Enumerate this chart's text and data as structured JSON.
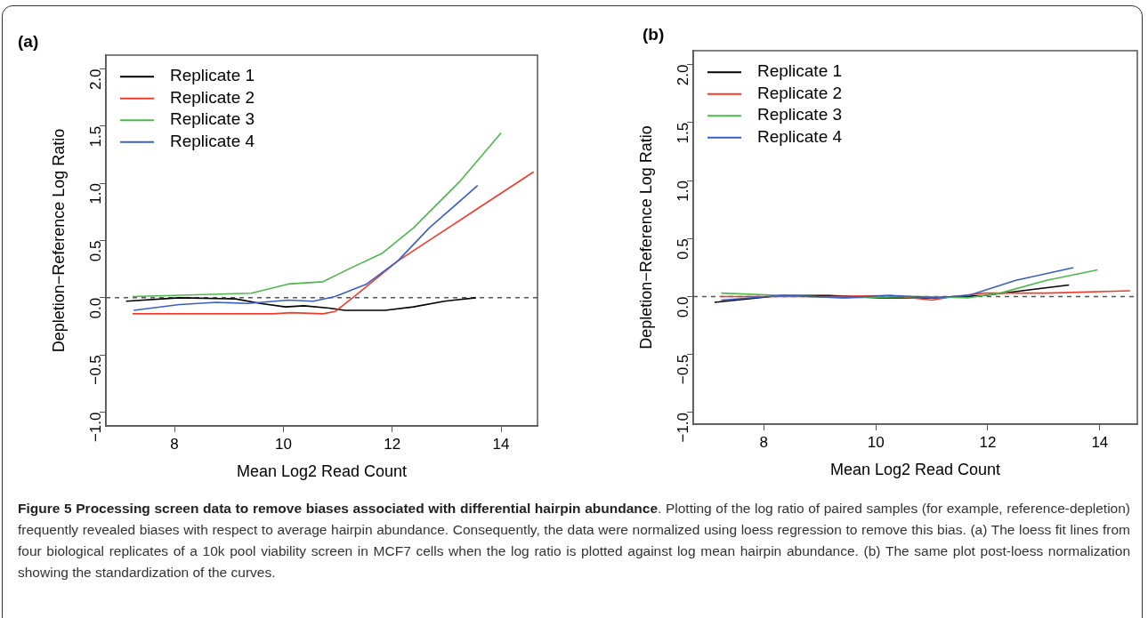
{
  "chart_data": [
    {
      "type": "line",
      "title": "(a)",
      "xlabel": "Mean Log2 Read Count",
      "ylabel": "Depletion−Reference Log Ratio",
      "xlim": [
        6.74,
        14.67
      ],
      "xticks": [
        8,
        10,
        12,
        14
      ],
      "ylim": [
        -1.12,
        2.12
      ],
      "yticks": [
        {
          "value": -1,
          "label": "−1.0"
        },
        {
          "value": -0.5,
          "label": "−0.5"
        },
        {
          "value": 0,
          "label": "0.0"
        },
        {
          "value": 0.5,
          "label": "0.5"
        },
        {
          "value": 1,
          "label": "1.0"
        },
        {
          "value": 1.5,
          "label": "1.5"
        },
        {
          "value": 2,
          "label": "2.0"
        }
      ],
      "grid": false,
      "legend": "top left",
      "marker": "none",
      "ref_lines": [
        {
          "axis": "y",
          "value": 0,
          "color": "#555555",
          "line_style": "dashed"
        }
      ],
      "series": [
        {
          "name": "Replicate 1",
          "color": "#000000",
          "x": [
            7.11,
            8.09,
            9.12,
            9.58,
            10.04,
            10.38,
            10.84,
            11.13,
            11.87,
            12.39,
            12.96,
            13.54
          ],
          "values": [
            -0.03,
            0,
            -0.01,
            -0.05,
            -0.08,
            -0.07,
            -0.09,
            -0.11,
            -0.11,
            -0.08,
            -0.03,
            0
          ]
        },
        {
          "name": "Replicate 2",
          "color": "#f03c2a",
          "x": [
            7.23,
            9.81,
            10.15,
            10.73,
            10.95,
            11.3,
            12.1,
            13.54,
            14.6
          ],
          "values": [
            -0.14,
            -0.14,
            -0.13,
            -0.14,
            -0.12,
            0.01,
            0.32,
            0.77,
            1.1
          ]
        },
        {
          "name": "Replicate 3",
          "color": "#4cb84c",
          "x": [
            7.23,
            9.41,
            10.09,
            10.73,
            11.24,
            11.82,
            12.39,
            13.25,
            14.0
          ],
          "values": [
            0.01,
            0.04,
            0.12,
            0.14,
            0.26,
            0.39,
            0.61,
            1.02,
            1.44
          ]
        },
        {
          "name": "Replicate 4",
          "color": "#3a5fc4",
          "x": [
            7.25,
            8.09,
            8.77,
            9.35,
            10.09,
            10.55,
            10.95,
            11.53,
            12.1,
            12.68,
            13.57
          ],
          "values": [
            -0.11,
            -0.06,
            -0.04,
            -0.05,
            -0.02,
            -0.03,
            0.01,
            0.12,
            0.32,
            0.61,
            0.98
          ]
        }
      ]
    },
    {
      "type": "line",
      "title": "(b)",
      "xlabel": "Mean Log2 Read Count",
      "ylabel": "Depletion−Reference Log Ratio",
      "xlim": [
        6.74,
        14.67
      ],
      "xticks": [
        8,
        10,
        12,
        14
      ],
      "ylim": [
        -1.1,
        2.12
      ],
      "yticks": [
        {
          "value": -1,
          "label": "−1.0"
        },
        {
          "value": -0.5,
          "label": "−0.5"
        },
        {
          "value": 0,
          "label": "0.0"
        },
        {
          "value": 0.5,
          "label": "0.5"
        },
        {
          "value": 1,
          "label": "1.0"
        },
        {
          "value": 1.5,
          "label": "1.5"
        },
        {
          "value": 2,
          "label": "2.0"
        }
      ],
      "grid": false,
      "legend": "top left",
      "marker": "none",
      "ref_lines": [
        {
          "axis": "y",
          "value": 0,
          "color": "#555555",
          "line_style": "dashed"
        }
      ],
      "series": [
        {
          "name": "Replicate 1",
          "color": "#000000",
          "x": [
            7.12,
            8.32,
            9.16,
            10.05,
            11.05,
            11.94,
            12.77,
            13.45
          ],
          "values": [
            -0.05,
            0.01,
            0.01,
            -0.01,
            -0.01,
            0.01,
            0.06,
            0.1
          ]
        },
        {
          "name": "Replicate 2",
          "color": "#f03c2a",
          "x": [
            7.21,
            9.16,
            10.26,
            11.0,
            11.38,
            11.94,
            13.05,
            14.54
          ],
          "values": [
            0,
            0,
            0.01,
            -0.03,
            0,
            0.03,
            0.03,
            0.05
          ]
        },
        {
          "name": "Replicate 3",
          "color": "#4cb84c",
          "x": [
            7.24,
            8.32,
            9.43,
            10.82,
            11.66,
            12.22,
            13.05,
            13.96
          ],
          "values": [
            0.03,
            0.01,
            -0.01,
            0,
            -0.01,
            0.03,
            0.14,
            0.23
          ]
        },
        {
          "name": "Replicate 4",
          "color": "#3a5fc4",
          "x": [
            7.24,
            8.32,
            9.43,
            10.26,
            11.05,
            11.66,
            12.5,
            13.53
          ],
          "values": [
            -0.03,
            0.01,
            -0.01,
            0.01,
            -0.01,
            0.01,
            0.14,
            0.25
          ]
        }
      ]
    },
    {
      "type": "other",
      "annotations": [
        "Figure 5 Processing screen data to remove biases associated with differential hairpin abundance",
        ". Plotting of the log ratio of paired samples (for example, reference-depletion) frequently revealed biases with respect to average hairpin abundance. Consequently, the data were normalized using loess regression to remove this bias. (a) The loess fit lines from four biological replicates of a 10k pool viability screen in MCF7 cells when the log ratio is plotted against log mean hairpin abundance. (b) The same plot post-loess normalization showing the standardization of the curves."
      ]
    }
  ]
}
